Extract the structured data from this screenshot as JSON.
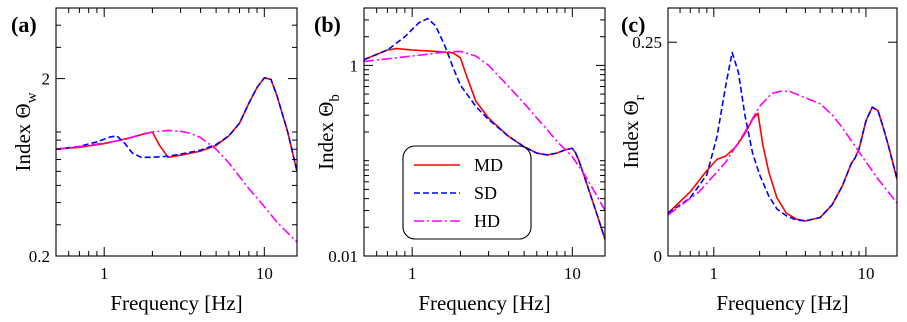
{
  "chart_data": [
    {
      "panel_label": "(a)",
      "type": "line",
      "xlabel": "Frequency [Hz]",
      "ylabel_main": "Index ",
      "ylabel_symbol": "Θ",
      "ylabel_sub": "w",
      "x_scale": "log",
      "y_scale": "log",
      "xlim": [
        0.5,
        16
      ],
      "ylim": [
        0.2,
        5
      ],
      "x_ticks": [
        {
          "value": 1,
          "label": "1"
        },
        {
          "value": 10,
          "label": "10"
        }
      ],
      "y_ticks": [
        {
          "value": 0.2,
          "label": "0.2"
        },
        {
          "value": 2,
          "label": "2"
        }
      ],
      "series": [
        {
          "name": "MD",
          "color": "#ff0000",
          "dash": "solid",
          "x": [
            0.5,
            0.7,
            1.0,
            1.4,
            1.8,
            2.0,
            2.2,
            2.5,
            3.0,
            4.0,
            5.0,
            6.0,
            7.0,
            8.0,
            9.0,
            10.0,
            11.0,
            12.0,
            14.0,
            16.0
          ],
          "y": [
            0.8,
            0.82,
            0.86,
            0.92,
            0.98,
            1.0,
            0.85,
            0.72,
            0.74,
            0.78,
            0.84,
            0.95,
            1.12,
            1.45,
            1.78,
            2.02,
            1.98,
            1.6,
            1.0,
            0.6
          ]
        },
        {
          "name": "SD",
          "color": "#0000ff",
          "dash": "dashed",
          "x": [
            0.5,
            0.7,
            0.9,
            1.1,
            1.2,
            1.35,
            1.5,
            1.7,
            2.0,
            2.5,
            3.0,
            4.0,
            5.0,
            6.0,
            7.0,
            8.0,
            9.0,
            10.0,
            11.0,
            12.0,
            14.0,
            16.0
          ],
          "y": [
            0.8,
            0.83,
            0.88,
            0.94,
            0.95,
            0.86,
            0.76,
            0.72,
            0.72,
            0.73,
            0.75,
            0.79,
            0.85,
            0.95,
            1.12,
            1.45,
            1.78,
            2.02,
            1.98,
            1.6,
            1.0,
            0.6
          ]
        },
        {
          "name": "HD",
          "color": "#ff00ff",
          "dash": "dashdot",
          "x": [
            0.5,
            0.8,
            1.2,
            1.6,
            2.0,
            2.5,
            3.0,
            3.5,
            4.0,
            5.0,
            6.0,
            7.0,
            8.0,
            10.0,
            12.0,
            14.0,
            16.0
          ],
          "y": [
            0.8,
            0.84,
            0.89,
            0.95,
            1.0,
            1.02,
            1.01,
            0.98,
            0.93,
            0.8,
            0.67,
            0.56,
            0.48,
            0.38,
            0.31,
            0.27,
            0.24
          ]
        }
      ]
    },
    {
      "panel_label": "(b)",
      "type": "line",
      "xlabel": "Frequency [Hz]",
      "ylabel_main": "Index ",
      "ylabel_symbol": "Θ",
      "ylabel_sub": "b",
      "x_scale": "log",
      "y_scale": "log",
      "xlim": [
        0.5,
        16
      ],
      "ylim": [
        0.01,
        4
      ],
      "x_ticks": [
        {
          "value": 1,
          "label": "1"
        },
        {
          "value": 10,
          "label": "10"
        }
      ],
      "y_ticks": [
        {
          "value": 0.01,
          "label": "0.01"
        },
        {
          "value": 1,
          "label": "1"
        }
      ],
      "series": [
        {
          "name": "MD",
          "color": "#ff0000",
          "dash": "solid",
          "x": [
            0.5,
            0.7,
            0.8,
            1.0,
            1.4,
            1.8,
            2.0,
            2.2,
            2.5,
            3.0,
            4.0,
            5.0,
            6.0,
            7.0,
            8.0,
            9.0,
            10.0,
            10.5,
            11.0,
            12.0,
            14.0,
            16.0
          ],
          "y": [
            1.15,
            1.45,
            1.5,
            1.45,
            1.4,
            1.35,
            1.2,
            0.75,
            0.42,
            0.28,
            0.18,
            0.14,
            0.12,
            0.115,
            0.12,
            0.13,
            0.135,
            0.12,
            0.1,
            0.065,
            0.03,
            0.015
          ]
        },
        {
          "name": "SD",
          "color": "#0000ff",
          "dash": "dashed",
          "x": [
            0.5,
            0.7,
            0.9,
            1.1,
            1.25,
            1.4,
            1.6,
            1.8,
            2.0,
            2.5,
            3.0,
            4.0,
            5.0,
            6.0,
            7.0,
            8.0,
            9.0,
            10.0,
            10.5,
            11.0,
            12.0,
            14.0,
            16.0
          ],
          "y": [
            1.15,
            1.45,
            2.0,
            2.8,
            3.1,
            2.6,
            1.6,
            0.95,
            0.62,
            0.37,
            0.27,
            0.18,
            0.14,
            0.12,
            0.115,
            0.12,
            0.13,
            0.135,
            0.12,
            0.1,
            0.065,
            0.03,
            0.015
          ]
        },
        {
          "name": "HD",
          "color": "#ff00ff",
          "dash": "dashdot",
          "x": [
            0.5,
            0.8,
            1.2,
            1.6,
            2.0,
            2.5,
            3.0,
            4.0,
            5.0,
            6.0,
            7.0,
            8.0,
            10.0,
            12.0,
            14.0,
            16.0
          ],
          "y": [
            1.1,
            1.2,
            1.3,
            1.38,
            1.4,
            1.25,
            1.0,
            0.6,
            0.4,
            0.28,
            0.21,
            0.16,
            0.11,
            0.07,
            0.045,
            0.03
          ]
        }
      ]
    },
    {
      "panel_label": "(c)",
      "type": "line",
      "xlabel": "Frequency [Hz]",
      "ylabel_main": "Index ",
      "ylabel_symbol": "Θ",
      "ylabel_sub": "r",
      "x_scale": "log",
      "y_scale": "linear",
      "xlim": [
        0.5,
        16
      ],
      "ylim": [
        0,
        0.29
      ],
      "x_ticks": [
        {
          "value": 1,
          "label": "1"
        },
        {
          "value": 10,
          "label": "10"
        }
      ],
      "y_ticks": [
        {
          "value": 0,
          "label": "0"
        },
        {
          "value": 0.25,
          "label": "0.25"
        }
      ],
      "series": [
        {
          "name": "MD",
          "color": "#ff0000",
          "dash": "solid",
          "x": [
            0.5,
            0.7,
            0.9,
            1.05,
            1.2,
            1.4,
            1.6,
            1.8,
            1.95,
            2.1,
            2.3,
            2.6,
            3.0,
            3.5,
            4.0,
            5.0,
            6.0,
            7.0,
            8.0,
            8.5,
            9.0,
            10.0,
            11.0,
            12.0,
            13.0,
            14.0,
            16.0
          ],
          "y": [
            0.05,
            0.075,
            0.1,
            0.113,
            0.117,
            0.128,
            0.143,
            0.16,
            0.167,
            0.13,
            0.098,
            0.068,
            0.05,
            0.043,
            0.041,
            0.045,
            0.06,
            0.082,
            0.108,
            0.115,
            0.125,
            0.158,
            0.174,
            0.17,
            0.15,
            0.13,
            0.09
          ]
        },
        {
          "name": "SD",
          "color": "#0000ff",
          "dash": "dashed",
          "x": [
            0.5,
            0.7,
            0.9,
            1.05,
            1.2,
            1.32,
            1.45,
            1.6,
            1.8,
            2.0,
            2.3,
            2.6,
            3.0,
            3.5,
            4.0,
            5.0,
            6.0,
            7.0,
            8.0,
            8.5,
            9.0,
            10.0,
            11.0,
            12.0,
            13.0,
            14.0,
            16.0
          ],
          "y": [
            0.05,
            0.068,
            0.095,
            0.14,
            0.2,
            0.238,
            0.215,
            0.165,
            0.12,
            0.095,
            0.07,
            0.055,
            0.047,
            0.042,
            0.041,
            0.045,
            0.06,
            0.082,
            0.108,
            0.115,
            0.125,
            0.158,
            0.174,
            0.17,
            0.15,
            0.13,
            0.09
          ]
        },
        {
          "name": "HD",
          "color": "#ff00ff",
          "dash": "dashdot",
          "x": [
            0.5,
            0.8,
            1.2,
            1.6,
            2.0,
            2.4,
            2.8,
            3.2,
            4.0,
            5.0,
            6.0,
            7.0,
            8.0,
            10.0,
            12.0,
            14.0,
            16.0
          ],
          "y": [
            0.048,
            0.075,
            0.11,
            0.145,
            0.175,
            0.19,
            0.193,
            0.192,
            0.185,
            0.178,
            0.165,
            0.15,
            0.135,
            0.11,
            0.09,
            0.075,
            0.062
          ]
        }
      ]
    }
  ],
  "legend": {
    "entries": [
      {
        "label": "MD",
        "color": "#ff0000",
        "dash": "solid"
      },
      {
        "label": "SD",
        "color": "#0000ff",
        "dash": "dashed"
      },
      {
        "label": "HD",
        "color": "#ff00ff",
        "dash": "dashdot"
      }
    ]
  }
}
